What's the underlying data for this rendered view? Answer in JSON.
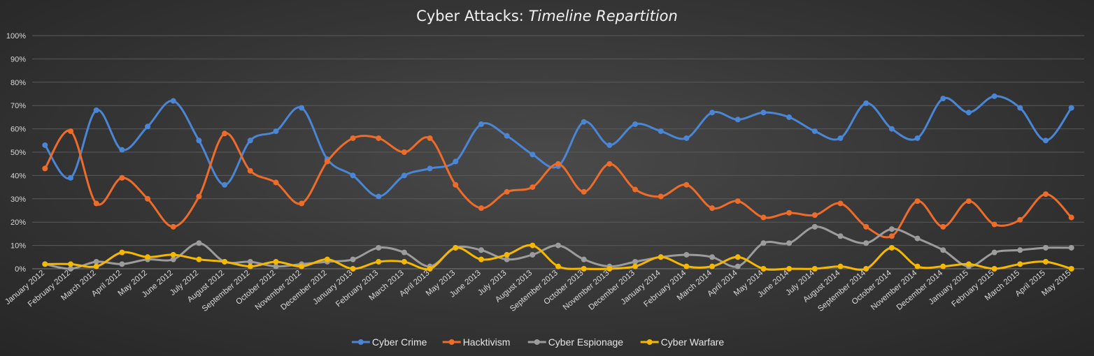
{
  "chart_data": {
    "type": "line",
    "title": "Cyber Attacks: ",
    "title_em": "Timeline Repartition",
    "xlabel": "",
    "ylabel": "",
    "ylim": [
      0,
      100
    ],
    "yticks": [
      "0%",
      "10%",
      "20%",
      "30%",
      "40%",
      "50%",
      "60%",
      "70%",
      "80%",
      "90%",
      "100%"
    ],
    "grid": true,
    "legend": "bottom",
    "smooth": true,
    "categories": [
      "January 2012",
      "February 2012",
      "March 2012",
      "April 2012",
      "May 2012",
      "June 2012",
      "July 2012",
      "August 2012",
      "September 2012",
      "October 2012",
      "November 2012",
      "December 2012",
      "January 2013",
      "February 2013",
      "March 2013",
      "April 2013",
      "May 2013",
      "June 2013",
      "July 2013",
      "August 2013",
      "September 2013",
      "October 2013",
      "November 2013",
      "December 2013",
      "January 2014",
      "February 2014",
      "March 2014",
      "April 2014",
      "May 2014",
      "June 2014",
      "July 2014",
      "August 2014",
      "September 2014",
      "October 2014",
      "November 2014",
      "December 2014",
      "January 2015",
      "February 2015",
      "March 2015",
      "April 2015",
      "May 2015"
    ],
    "series": [
      {
        "name": "Cyber Crime",
        "color": "#4a86d4",
        "values": [
          53,
          39,
          68,
          51,
          61,
          72,
          55,
          36,
          55,
          59,
          69,
          47,
          40,
          31,
          40,
          43,
          46,
          62,
          57,
          49,
          44,
          63,
          53,
          62,
          59,
          56,
          67,
          64,
          67,
          65,
          59,
          56,
          71,
          60,
          56,
          73,
          67,
          74,
          69,
          55,
          69
        ]
      },
      {
        "name": "Hacktivism",
        "color": "#ee6c2a",
        "values": [
          43,
          59,
          28,
          39,
          30,
          18,
          31,
          58,
          42,
          37,
          28,
          46,
          56,
          56,
          50,
          56,
          36,
          26,
          33,
          35,
          45,
          33,
          45,
          34,
          31,
          36,
          26,
          29,
          22,
          24,
          23,
          28,
          18,
          14,
          29,
          18,
          29,
          19,
          21,
          32,
          22
        ]
      },
      {
        "name": "Cyber Espionage",
        "color": "#9c9c9c",
        "values": [
          2,
          0,
          3,
          2,
          4,
          4,
          11,
          3,
          3,
          1,
          2,
          3,
          4,
          9,
          7,
          1,
          9,
          8,
          4,
          6,
          10,
          4,
          1,
          3,
          5,
          6,
          5,
          1,
          11,
          11,
          18,
          14,
          11,
          17,
          13,
          8,
          1,
          7,
          8,
          9,
          9
        ]
      },
      {
        "name": "Cyber Warfare",
        "color": "#f5b800",
        "values": [
          2,
          2,
          1,
          7,
          5,
          6,
          4,
          3,
          1,
          3,
          1,
          4,
          0,
          3,
          3,
          0,
          9,
          4,
          6,
          10,
          1,
          0,
          0,
          1,
          5,
          1,
          1,
          5,
          0,
          0,
          0,
          1,
          0,
          9,
          1,
          1,
          2,
          0,
          2,
          3,
          0
        ]
      }
    ]
  }
}
